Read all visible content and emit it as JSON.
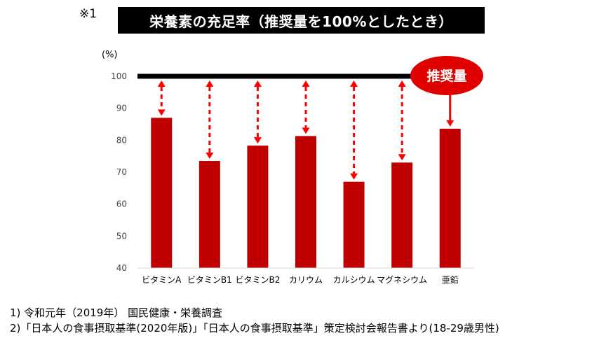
{
  "note_mark": "※1",
  "chart_data": {
    "type": "bar",
    "title": "栄養素の充足率（推奨量を100%としたとき）",
    "ylabel": "(%)",
    "categories": [
      "ビタミンA",
      "ビタミンB1",
      "ビタミンB2",
      "カリウム",
      "カルシウム",
      "マグネシウム",
      "亜鉛"
    ],
    "values": [
      87,
      73.5,
      78.3,
      81.3,
      67,
      73,
      83.6
    ],
    "ylim": [
      40,
      100
    ],
    "yticks": [
      40,
      50,
      60,
      70,
      80,
      90,
      100
    ],
    "reference_line": 100,
    "reference_label": "推奨量",
    "grid": false,
    "colors": {
      "bar": "#c00000",
      "arrow": "#ff0000",
      "reference": "#000000",
      "badge": "#e00000"
    }
  },
  "sources": [
    "1) 令和元年（2019年） 国民健康・栄養調査",
    "2)「日本人の食事摂取基準(2020年版)」「日本人の食事摂取基準」策定検討会報告書より(18-29歳男性)"
  ]
}
